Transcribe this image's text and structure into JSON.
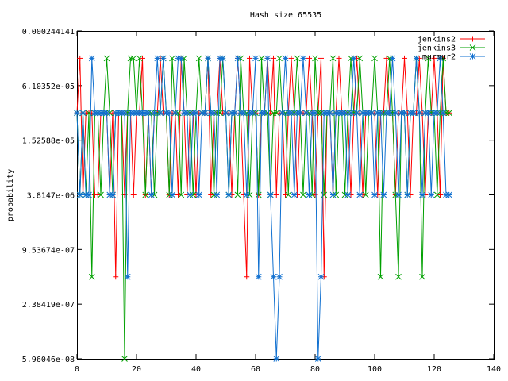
{
  "chart_data": {
    "type": "line",
    "title": "Hash size 65535",
    "xlabel": "",
    "ylabel": "probability",
    "xlim": [
      0,
      140
    ],
    "x_ticks": [
      0,
      20,
      40,
      60,
      80,
      100,
      120,
      140
    ],
    "y_scale": "log4",
    "y_tick_values": [
      0.000244141,
      6.10352e-05,
      1.52588e-05,
      3.8147e-06,
      9.53674e-07,
      2.38419e-07,
      5.96046e-08
    ],
    "y_tick_labels": [
      "0.000244141",
      "6.10352e-05",
      "1.52588e-05",
      "3.8147e-06",
      "9.53674e-07",
      "2.38419e-07",
      "5.96046e-08"
    ],
    "grid": false,
    "legend_position": "top-right",
    "series": [
      {
        "name": "jenkins2",
        "color": "#ff0000",
        "marker": "plus",
        "level_values": [
          0.00012207,
          3.05176e-05,
          3.8147e-06,
          4.76837e-07
        ],
        "x": [
          0,
          1,
          2,
          3,
          4,
          5,
          6,
          7,
          8,
          9,
          10,
          11,
          12,
          13,
          14,
          15,
          16,
          17,
          18,
          19,
          20,
          21,
          22,
          23,
          24,
          25,
          26,
          27,
          28,
          29,
          30,
          31,
          32,
          33,
          34,
          35,
          36,
          37,
          38,
          39,
          40,
          41,
          42,
          43,
          44,
          45,
          46,
          47,
          48,
          49,
          50,
          51,
          52,
          53,
          54,
          55,
          56,
          57,
          58,
          59,
          60,
          61,
          62,
          63,
          64,
          65,
          66,
          67,
          68,
          69,
          70,
          71,
          72,
          73,
          74,
          75,
          76,
          77,
          78,
          79,
          80,
          81,
          82,
          83,
          84,
          85,
          86,
          87,
          88,
          89,
          90,
          91,
          92,
          93,
          94,
          95,
          96,
          97,
          98,
          99,
          100,
          101,
          102,
          103,
          104,
          105,
          106,
          107,
          108,
          109,
          110,
          111,
          112,
          113,
          114,
          115,
          116,
          117,
          118,
          119,
          120,
          121,
          122,
          123,
          124,
          125
        ],
        "levels": [
          1,
          0,
          2,
          1,
          1,
          1,
          2,
          2,
          1,
          1,
          1,
          2,
          1,
          3,
          1,
          1,
          2,
          1,
          1,
          2,
          1,
          1,
          0,
          2,
          1,
          2,
          1,
          1,
          0,
          1,
          1,
          2,
          1,
          1,
          2,
          0,
          1,
          2,
          1,
          1,
          2,
          1,
          1,
          1,
          0,
          2,
          1,
          1,
          0,
          1,
          1,
          1,
          2,
          1,
          0,
          1,
          2,
          3,
          0,
          1,
          1,
          2,
          1,
          1,
          0,
          1,
          0,
          2,
          1,
          1,
          2,
          1,
          0,
          1,
          2,
          1,
          1,
          1,
          0,
          1,
          2,
          1,
          0,
          3,
          1,
          1,
          2,
          1,
          0,
          1,
          1,
          1,
          2,
          1,
          0,
          1,
          2,
          1,
          1,
          1,
          1,
          2,
          1,
          1,
          0,
          1,
          1,
          2,
          1,
          1,
          0,
          1,
          2,
          1,
          1,
          0,
          1,
          2,
          1,
          1,
          0,
          1,
          2,
          0,
          1,
          1
        ]
      },
      {
        "name": "jenkins3",
        "color": "#00a000",
        "marker": "cross",
        "level_values": [
          0.00012207,
          3.05176e-05,
          3.8147e-06,
          4.76837e-07,
          5.96046e-08
        ],
        "x": [
          0,
          1,
          2,
          3,
          4,
          5,
          6,
          7,
          8,
          9,
          10,
          11,
          12,
          13,
          14,
          15,
          16,
          17,
          18,
          19,
          20,
          21,
          22,
          23,
          24,
          25,
          26,
          27,
          28,
          29,
          30,
          31,
          32,
          33,
          34,
          35,
          36,
          37,
          38,
          39,
          40,
          41,
          42,
          43,
          44,
          45,
          46,
          47,
          48,
          49,
          50,
          51,
          52,
          53,
          54,
          55,
          56,
          57,
          58,
          59,
          60,
          61,
          62,
          63,
          64,
          65,
          66,
          67,
          68,
          69,
          70,
          71,
          72,
          73,
          74,
          75,
          76,
          77,
          78,
          79,
          80,
          81,
          82,
          83,
          84,
          85,
          86,
          87,
          88,
          89,
          90,
          91,
          92,
          93,
          94,
          95,
          96,
          97,
          98,
          99,
          100,
          101,
          102,
          103,
          104,
          105,
          106,
          107,
          108,
          109,
          110,
          111,
          112,
          113,
          114,
          115,
          116,
          117,
          118,
          119,
          120,
          121,
          122,
          123,
          124,
          125
        ],
        "levels": [
          1,
          2,
          1,
          2,
          1,
          3,
          1,
          1,
          2,
          1,
          0,
          1,
          2,
          1,
          1,
          1,
          4,
          1,
          0,
          0,
          1,
          0,
          1,
          2,
          1,
          1,
          2,
          1,
          1,
          0,
          1,
          2,
          0,
          1,
          1,
          2,
          0,
          1,
          1,
          2,
          1,
          0,
          1,
          1,
          0,
          1,
          2,
          1,
          1,
          0,
          1,
          2,
          1,
          1,
          2,
          0,
          1,
          1,
          2,
          1,
          1,
          2,
          0,
          1,
          1,
          2,
          1,
          1,
          0,
          1,
          1,
          2,
          1,
          1,
          0,
          1,
          2,
          1,
          1,
          2,
          0,
          1,
          1,
          2,
          1,
          1,
          0,
          2,
          1,
          1,
          2,
          1,
          0,
          1,
          1,
          0,
          1,
          2,
          1,
          1,
          0,
          1,
          3,
          1,
          1,
          0,
          1,
          2,
          3,
          1,
          1,
          2,
          1,
          1,
          0,
          1,
          3,
          1,
          0,
          1,
          1,
          2,
          1,
          0,
          1,
          1
        ]
      },
      {
        "name": "murmur2",
        "color": "#1070d0",
        "marker": "star",
        "level_values": [
          0.00012207,
          3.05176e-05,
          3.8147e-06,
          4.76837e-07,
          5.96046e-08
        ],
        "x": [
          0,
          1,
          2,
          3,
          4,
          5,
          6,
          7,
          8,
          9,
          10,
          11,
          12,
          13,
          14,
          15,
          16,
          17,
          18,
          19,
          20,
          21,
          22,
          23,
          24,
          25,
          26,
          27,
          28,
          29,
          30,
          31,
          32,
          33,
          34,
          35,
          36,
          37,
          38,
          39,
          40,
          41,
          42,
          43,
          44,
          45,
          46,
          47,
          48,
          49,
          50,
          51,
          52,
          53,
          54,
          55,
          56,
          57,
          58,
          59,
          60,
          61,
          62,
          63,
          64,
          65,
          66,
          67,
          68,
          69,
          70,
          71,
          72,
          73,
          74,
          75,
          76,
          77,
          78,
          79,
          80,
          81,
          82,
          83,
          84,
          85,
          86,
          87,
          88,
          89,
          90,
          91,
          92,
          93,
          94,
          95,
          96,
          97,
          98,
          99,
          100,
          101,
          102,
          103,
          104,
          105,
          106,
          107,
          108,
          109,
          110,
          111,
          112,
          113,
          114,
          115,
          116,
          117,
          118,
          119,
          120,
          121,
          122,
          123,
          124,
          125
        ],
        "levels": [
          1,
          2,
          1,
          2,
          2,
          0,
          1,
          1,
          1,
          1,
          1,
          2,
          2,
          1,
          1,
          1,
          1,
          3,
          1,
          1,
          1,
          1,
          1,
          1,
          1,
          2,
          1,
          0,
          1,
          0,
          1,
          1,
          2,
          1,
          0,
          0,
          1,
          1,
          2,
          1,
          1,
          2,
          1,
          1,
          0,
          1,
          1,
          2,
          0,
          0,
          1,
          2,
          1,
          1,
          0,
          1,
          1,
          2,
          1,
          1,
          0,
          3,
          1,
          1,
          0,
          2,
          3,
          4,
          3,
          1,
          0,
          1,
          1,
          2,
          1,
          1,
          0,
          1,
          2,
          1,
          1,
          4,
          3,
          1,
          1,
          1,
          2,
          1,
          1,
          1,
          1,
          2,
          1,
          0,
          1,
          2,
          1,
          1,
          1,
          1,
          2,
          1,
          1,
          2,
          1,
          1,
          0,
          1,
          2,
          1,
          1,
          2,
          1,
          1,
          0,
          1,
          2,
          1,
          1,
          2,
          1,
          1,
          0,
          1,
          2,
          2
        ]
      }
    ]
  }
}
